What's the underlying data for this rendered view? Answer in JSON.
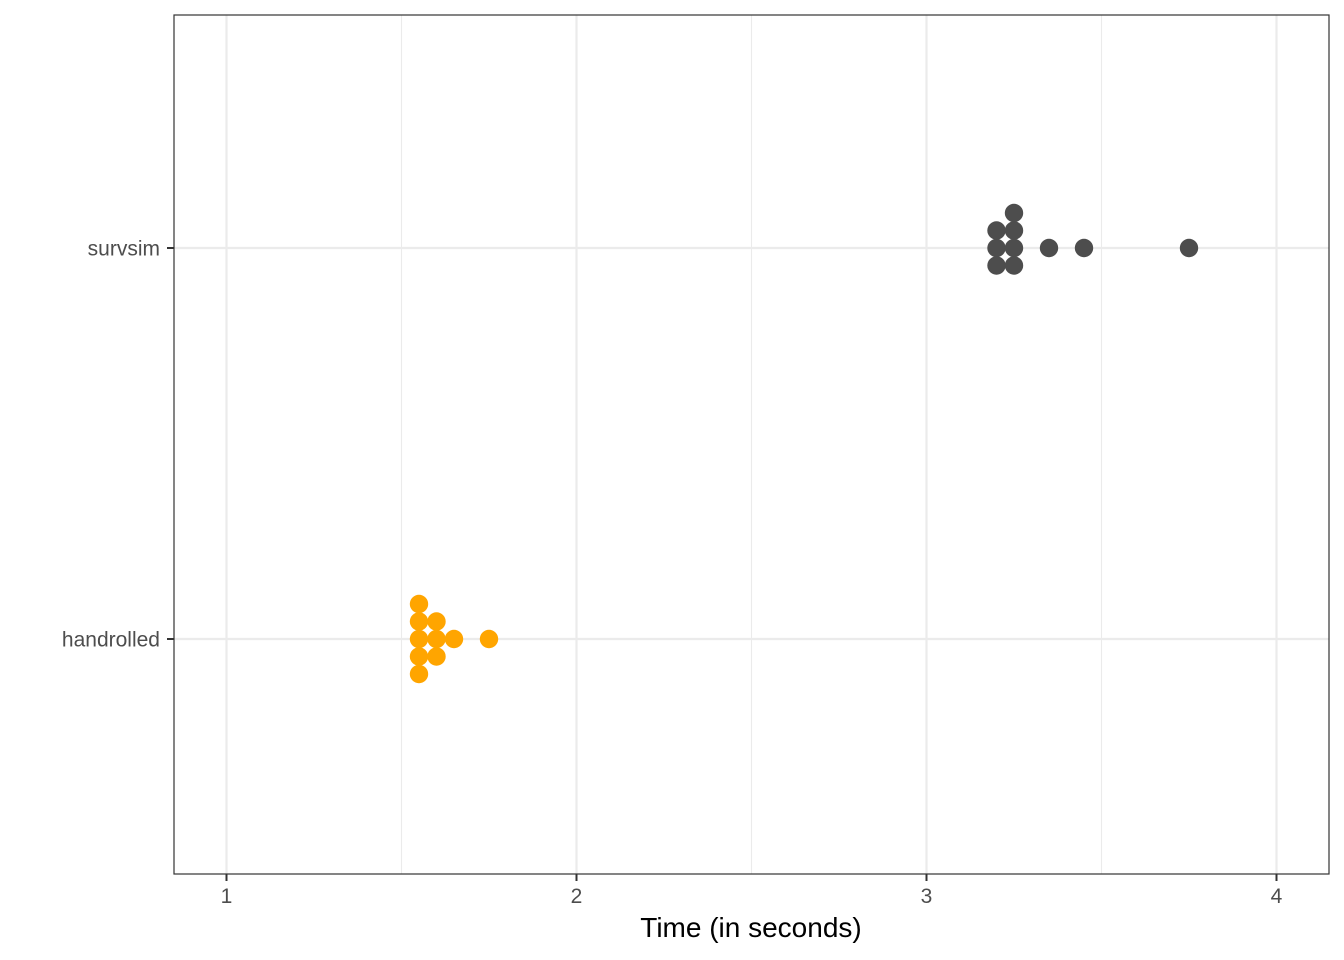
{
  "chart_data": {
    "type": "scatter",
    "subtype": "dotplot",
    "title": "",
    "xlabel": "Time (in seconds)",
    "ylabel": "",
    "xlim": [
      0.85,
      4.15
    ],
    "x_ticks": [
      1,
      2,
      3,
      4
    ],
    "x_tick_labels": [
      "1",
      "2",
      "3",
      "4"
    ],
    "categories": [
      "handrolled",
      "survsim"
    ],
    "grid": true,
    "legend": "none",
    "colors": {
      "handrolled": "#FFA500",
      "survsim": "#4D4D4D"
    },
    "series": [
      {
        "category": "handrolled",
        "points": [
          {
            "x": 1.55,
            "stack": 0
          },
          {
            "x": 1.55,
            "stack": 1
          },
          {
            "x": 1.55,
            "stack": -1
          },
          {
            "x": 1.55,
            "stack": 2
          },
          {
            "x": 1.55,
            "stack": -2
          },
          {
            "x": 1.6,
            "stack": 0
          },
          {
            "x": 1.6,
            "stack": 1
          },
          {
            "x": 1.6,
            "stack": -1
          },
          {
            "x": 1.65,
            "stack": 0
          },
          {
            "x": 1.75,
            "stack": 0
          }
        ]
      },
      {
        "category": "survsim",
        "points": [
          {
            "x": 3.2,
            "stack": 0
          },
          {
            "x": 3.2,
            "stack": 1
          },
          {
            "x": 3.2,
            "stack": -1
          },
          {
            "x": 3.25,
            "stack": 0
          },
          {
            "x": 3.25,
            "stack": 1
          },
          {
            "x": 3.25,
            "stack": -1
          },
          {
            "x": 3.25,
            "stack": 2
          },
          {
            "x": 3.35,
            "stack": 0
          },
          {
            "x": 3.45,
            "stack": 0
          },
          {
            "x": 3.75,
            "stack": 0
          }
        ]
      }
    ]
  }
}
